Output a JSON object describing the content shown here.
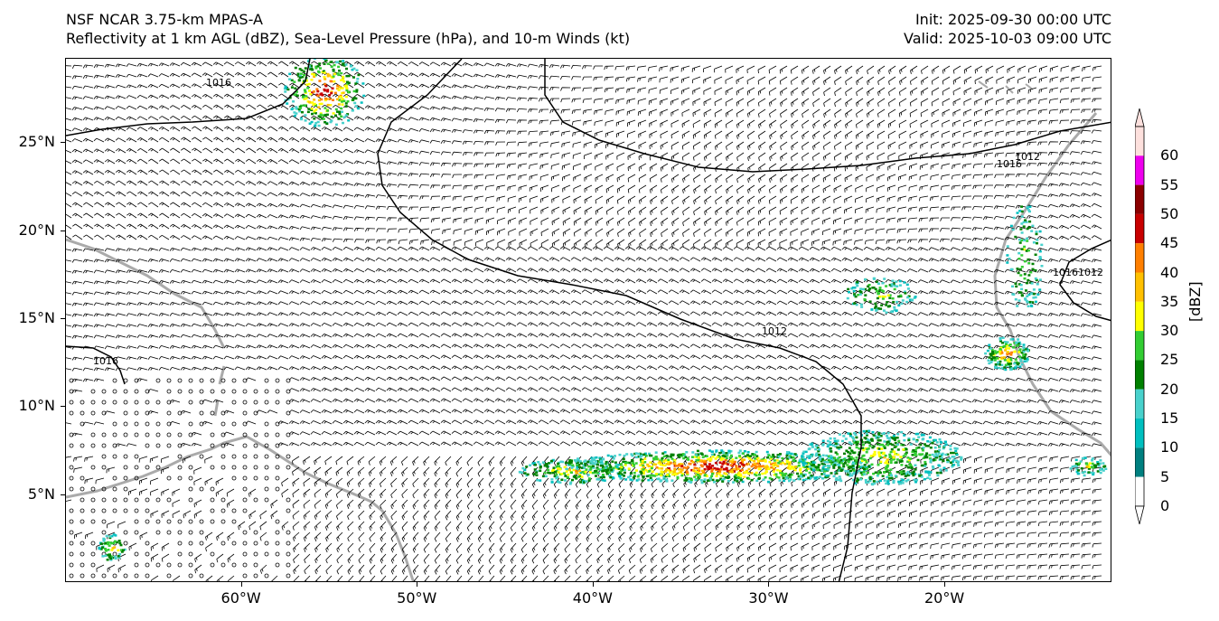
{
  "header": {
    "left_line1": "NSF NCAR 3.75-km MPAS-A",
    "left_line2": "Reflectivity at 1 km AGL (dBZ), Sea-Level Pressure (hPa), and 10-m Winds (kt)",
    "right_line1": "Init: 2025-09-30 00:00 UTC",
    "right_line2": "Valid: 2025-10-03 09:00 UTC"
  },
  "map": {
    "lon_range": [
      -70,
      -10.5
    ],
    "lat_range": [
      0,
      29.8
    ],
    "lat_labels": [
      "25°N",
      "20°N",
      "15°N",
      "10°N",
      "5°N"
    ],
    "lon_labels": [
      "60°W",
      "50°W",
      "40°W",
      "30°W",
      "20°W"
    ],
    "isobar_labels": [
      "1016",
      "1016",
      "1012",
      "1016",
      "1016",
      "1012",
      "1012"
    ],
    "coastline_color": "#aaaaaa",
    "isobar_color": "#000000"
  },
  "colorbar": {
    "unit": "[dBZ]",
    "tick_labels": [
      "60",
      "55",
      "50",
      "45",
      "40",
      "35",
      "30",
      "25",
      "20",
      "15",
      "10",
      "5",
      "0"
    ],
    "colors": [
      "#fde0dd",
      "#ee00ee",
      "#8b0000",
      "#c80000",
      "#ff7f00",
      "#ffc000",
      "#ffff00",
      "#32cd32",
      "#008000",
      "#48d1cc",
      "#00bfbf",
      "#008080",
      "#ffffff"
    ]
  }
}
